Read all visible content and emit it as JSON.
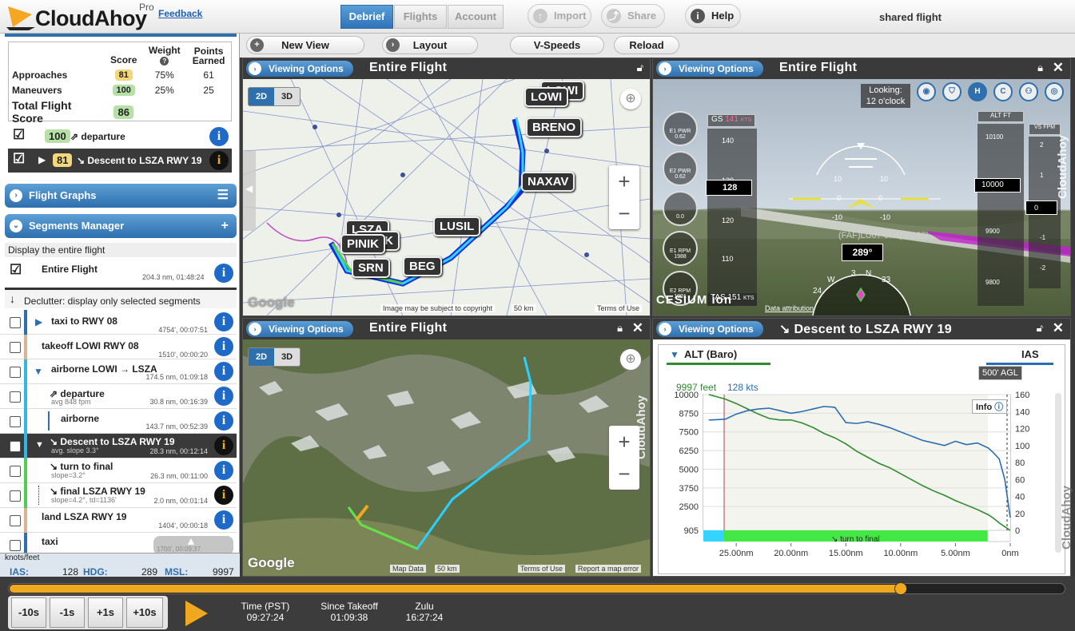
{
  "app": {
    "logo": "CloudAhoy",
    "pro": "Pro",
    "feedback": "Feedback",
    "shared": "shared flight"
  },
  "nav": {
    "tabs": [
      {
        "label": "Debrief",
        "active": true
      },
      {
        "label": "Flights"
      },
      {
        "label": "Account"
      }
    ],
    "import": "Import",
    "share": "Share",
    "help": "Help"
  },
  "toolbar": {
    "new_view": "New View",
    "layout": "Layout",
    "vspeeds": "V-Speeds",
    "reload": "Reload"
  },
  "score": {
    "h_score": "Score",
    "h_weight": "Weight",
    "h_points": "Points",
    "h_earned": "Earned",
    "rows": [
      {
        "name": "Approaches",
        "score": "81",
        "weight": "75%",
        "points": "61"
      },
      {
        "name": "Maneuvers",
        "score": "100",
        "weight": "25%",
        "points": "25"
      }
    ],
    "total_label": "Total Flight Score",
    "total": "86"
  },
  "scored": [
    {
      "score": "100",
      "name": "⇗ departure"
    },
    {
      "score": "81",
      "name": "↘ Descent to LSZA RWY 19"
    }
  ],
  "sections": {
    "graphs": "Flight Graphs",
    "segments": "Segments Manager"
  },
  "segments": {
    "display_all": "Display the entire flight",
    "entire_name": "Entire Flight",
    "entire_meta": "204.3 nm, 01:48:24",
    "declutter": "Declutter: display only selected segments",
    "items": [
      {
        "name": "taxi to RWY 08",
        "meta": "4754', 00:07:51"
      },
      {
        "name": "takeoff LOWI RWY 08",
        "meta": "1510', 00:00:20"
      },
      {
        "name": "airborne LOWI → LSZA",
        "meta": "174.5 nm, 01:09:18"
      },
      {
        "name": "⇗ departure",
        "sub": "avg 848 fpm",
        "meta": "30.8 nm, 00:16:39"
      },
      {
        "name": "airborne",
        "meta": "143.7 nm, 00:52:39"
      },
      {
        "name": "↘ Descent to LSZA RWY 19",
        "sub": "avg. slope 3.3°",
        "meta": "28.3 nm, 00:12:14"
      },
      {
        "name": "↘ turn to final",
        "sub": "slope=3.2°",
        "meta": "26.3 nm, 00:11:00"
      },
      {
        "name": "↘ final LSZA RWY 19",
        "sub": "slope=4.2°, td=1136'",
        "meta": "2.0 nm, 00:01:14"
      },
      {
        "name": "land LSZA RWY 19",
        "meta": "1404', 00:00:18"
      },
      {
        "name": "taxi",
        "meta": "1700', 00:09:37"
      }
    ]
  },
  "status": {
    "units": "knots/feet",
    "ias_label": "IAS:",
    "ias": "128",
    "hdg_label": "HDG:",
    "hdg": "289",
    "msl_label": "MSL:",
    "msl": "9997"
  },
  "panels": {
    "viewing": "Viewing Options",
    "p1_title": "Entire Flight",
    "p2_title": "Entire Flight",
    "p3_title": "Entire Flight",
    "p4_title": "↘ Descent to LSZA RWY 19"
  },
  "map1": {
    "btn2d": "2D",
    "btn3d": "3D",
    "waypoints": [
      "LOWI",
      "BRENO",
      "NAXAV",
      "LUSIL",
      "PINIK",
      "SRN",
      "BEG",
      "LSZA"
    ],
    "copyright": "Image may be subject to copyright",
    "scale": "50 km",
    "terms": "Terms of Use",
    "google": "Google"
  },
  "map2": {
    "btn2d": "2D",
    "btn3d": "3D",
    "mapdata": "Map Data",
    "scale": "50 km",
    "terms": "Terms of Use",
    "report": "Report a map error",
    "google": "Google"
  },
  "cockpit": {
    "looking1": "Looking:",
    "looking2": "12 o'clock",
    "gs_label": "GS",
    "gs": "141",
    "gs_unit": "KTS",
    "alt_label": "ALT FT",
    "vs_label": "VS FPM",
    "speed": "128",
    "alt": "10000",
    "vs": "0",
    "hdg": "289°",
    "tas_label": "TAS",
    "tas": "151",
    "tas_unit": "KTS",
    "cesium": "CESIUM ion",
    "attrib": "Data attribution",
    "approach": "(FAF)LU07 6.5 (14000)",
    "speed_ticks": [
      "140",
      "130",
      "120",
      "110"
    ],
    "alt_ticks": [
      "10100",
      "9900",
      "9800"
    ],
    "vs_ticks": [
      "2",
      "1",
      "-1",
      "-2"
    ],
    "pitch": [
      "10",
      "0",
      "-10"
    ],
    "compass": [
      "W",
      "3",
      "N",
      "33",
      "24"
    ],
    "gauges": [
      {
        "l1": "E1 PWR",
        "l2": "0.62"
      },
      {
        "l1": "E2 PWR",
        "l2": "0.62"
      },
      {
        "l1": "",
        "l2": "0.0"
      },
      {
        "l1": "E1 RPM",
        "l2": "1988"
      },
      {
        "l1": "E2 RPM",
        "l2": "1991"
      }
    ]
  },
  "graph": {
    "alt_label": "ALT (Baro)",
    "ias_label": "IAS",
    "agl": "500' AGL",
    "readout_alt": "9997 feet",
    "readout_ias": "128 kts",
    "info": "Info",
    "segment": "↘ turn to final",
    "left_ticks": [
      "10000",
      "8750",
      "7500",
      "6250",
      "5000",
      "3750",
      "2500",
      "905"
    ],
    "right_ticks": [
      "160",
      "140",
      "120",
      "100",
      "80",
      "60",
      "40",
      "20",
      "0"
    ],
    "x_ticks": [
      "25.00nm",
      "20.00nm",
      "15.00nm",
      "10.00nm",
      "5.00nm",
      "0nm"
    ]
  },
  "chart_data": {
    "type": "line",
    "xlabel": "",
    "ylabel": "ALT (Baro)",
    "y2label": "IAS",
    "xlim": [
      28,
      0
    ],
    "ylim": [
      905,
      10000
    ],
    "y2lim": [
      0,
      160
    ],
    "x": [
      27.5,
      26,
      25,
      24,
      23,
      22,
      21,
      20,
      19,
      18,
      17,
      16,
      15,
      14,
      13,
      12,
      11,
      10,
      9,
      8,
      7,
      6,
      5,
      4,
      3,
      2,
      1.5,
      1,
      0.5,
      0
    ],
    "series": [
      {
        "name": "ALT (Baro)",
        "values": [
          10000,
          9700,
          9400,
          9050,
          8700,
          8400,
          8300,
          8300,
          8100,
          7800,
          7400,
          7100,
          6700,
          6200,
          5800,
          5400,
          5100,
          4700,
          4300,
          3900,
          3550,
          3250,
          2900,
          2600,
          2300,
          1950,
          1700,
          1400,
          1150,
          905
        ]
      },
      {
        "name": "IAS",
        "values": [
          130,
          131,
          137,
          141,
          143,
          144,
          141,
          138,
          140,
          143,
          146,
          145,
          127,
          126,
          128,
          125,
          121,
          116,
          111,
          106,
          103,
          100,
          105,
          101,
          103,
          97,
          91,
          84,
          60,
          15
        ]
      }
    ]
  },
  "playback": {
    "m10": "-10s",
    "m1": "-1s",
    "p1": "+1s",
    "p10": "+10s",
    "time_label": "Time (PST)",
    "time": "09:27:24",
    "since_label": "Since Takeoff",
    "since": "01:09:38",
    "zulu_label": "Zulu",
    "zulu": "16:27:24",
    "progress": 0.845
  },
  "watermark": "CloudAhoy",
  "colors": {
    "accent": "#2e6fae",
    "progress": "#f0a820",
    "alt_line": "#2e8b2e",
    "ias_line": "#2a6db0"
  }
}
